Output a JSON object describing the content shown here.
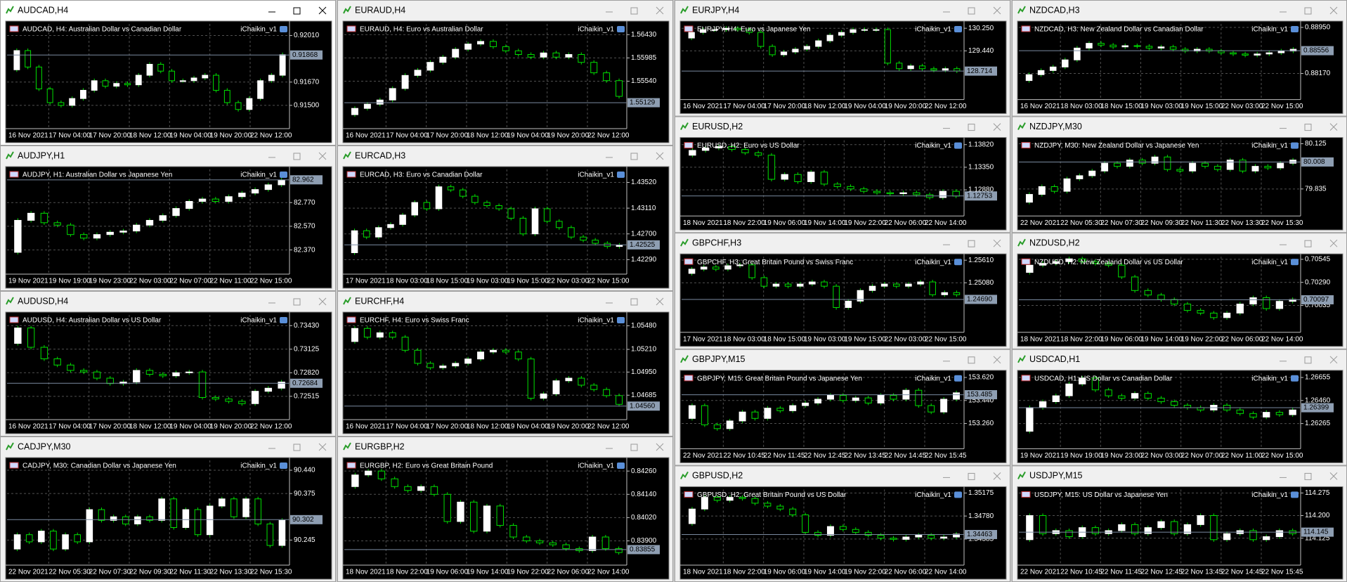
{
  "windows": [
    {
      "title": "AUDCAD,H4",
      "active": true,
      "description": "AUDCAD, H4:  Australian Dollar vs Canadian Dollar",
      "indicator": "iChaikin_v1",
      "ylim": [
        0.9133,
        0.92095
      ],
      "yticks": [
        {
          "value": 0.9201,
          "label": "0.92010"
        },
        {
          "value": 0.9167,
          "label": "0.91670"
        },
        {
          "value": 0.915,
          "label": "0.91500"
        }
      ],
      "price": 0.91868,
      "xlabels": [
        "16 Nov 2021",
        "17 Nov 04:00",
        "17 Nov 20:00",
        "18 Nov 12:00",
        "19 Nov 04:00",
        "19 Nov 20:00",
        "22 Nov 12:00"
      ],
      "open": 0.9176,
      "closes": [
        0.919,
        0.9178,
        0.9162,
        0.9152,
        0.915,
        0.9155,
        0.9161,
        0.9168,
        0.9164,
        0.9166,
        0.9165,
        0.9172,
        0.918,
        0.9175,
        0.9168,
        0.9168,
        0.917,
        0.9172,
        0.9161,
        0.9152,
        0.9147,
        0.9155,
        0.9168,
        0.9172,
        0.9187
      ]
    },
    {
      "title": "AUDJPY,H1",
      "description": "AUDJPY, H1:  Australian Dollar vs Japanese Yen",
      "indicator": "iChaikin_v1",
      "ylim": [
        82.166,
        83.05
      ],
      "yticks": [
        {
          "value": 82.77,
          "label": "82.770"
        },
        {
          "value": 82.57,
          "label": "82.570"
        },
        {
          "value": 82.37,
          "label": "82.370"
        }
      ],
      "price": 82.962,
      "xlabels": [
        "19 Nov 2021",
        "19 Nov 19:00",
        "19 Nov 23:00",
        "22 Nov 03:00",
        "22 Nov 07:00",
        "22 Nov 11:00",
        "22 Nov 15:00"
      ],
      "open": 82.35,
      "closes": [
        82.62,
        82.68,
        82.6,
        82.58,
        82.5,
        82.47,
        82.5,
        82.52,
        82.53,
        82.58,
        82.62,
        82.66,
        82.72,
        82.78,
        82.8,
        82.78,
        82.82,
        82.85,
        82.88,
        82.92,
        82.96
      ]
    },
    {
      "title": "AUDUSD,H4",
      "description": "AUDUSD, H4:  Australian Dollar vs US Dollar",
      "indicator": "iChaikin_v1",
      "ylim": [
        0.72213,
        0.73569
      ],
      "yticks": [
        {
          "value": 0.7343,
          "label": "0.73430"
        },
        0.73125,
        {
          "value": 0.7282,
          "label": "0.72820"
        },
        0.72515
      ],
      "price": 0.72684,
      "xlabels": [
        "16 Nov 2021",
        "17 Nov 04:00",
        "17 Nov 20:00",
        "18 Nov 12:00",
        "19 Nov 04:00",
        "19 Nov 20:00",
        "22 Nov 12:00"
      ],
      "open": 0.732,
      "closes": [
        0.734,
        0.7315,
        0.73,
        0.7292,
        0.7285,
        0.7283,
        0.7275,
        0.7268,
        0.727,
        0.7285,
        0.728,
        0.7278,
        0.7282,
        0.7283,
        0.725,
        0.7248,
        0.7245,
        0.7242,
        0.7258,
        0.7262,
        0.727
      ]
    },
    {
      "title": "CADJPY,M30",
      "description": "CADJPY, M30:  Canadian Dollar vs Japanese Yen",
      "indicator": "iChaikin_v1",
      "ylim": [
        90.175,
        90.4675
      ],
      "yticks": [
        {
          "value": 90.44,
          "label": "90.440"
        },
        90.375,
        90.245
      ],
      "price": 90.302,
      "xlabels": [
        "22 Nov 2021",
        "22 Nov 05:30",
        "22 Nov 07:30",
        "22 Nov 09:30",
        "22 Nov 11:30",
        "22 Nov 13:30",
        "22 Nov 15:30"
      ],
      "open": 90.22,
      "closes": [
        90.26,
        90.24,
        90.27,
        90.22,
        90.26,
        90.24,
        90.33,
        90.3,
        90.31,
        90.29,
        90.31,
        90.3,
        90.36,
        90.28,
        90.33,
        90.26,
        90.34,
        90.36,
        90.31,
        90.36,
        90.29,
        90.23,
        90.3
      ]
    },
    {
      "title": "EURAUD,H4",
      "description": "EURAUD, H4:  Euro vs Australian Dollar",
      "indicator": "iChaikin_v1",
      "ylim": [
        1.54633,
        1.56635
      ],
      "yticks": [
        {
          "value": 1.5643,
          "label": "1.56430"
        },
        1.55985,
        {
          "value": 1.5554,
          "label": "1.55540"
        }
      ],
      "price": 1.55129,
      "xlabels": [
        "16 Nov 2021",
        "17 Nov 04:00",
        "17 Nov 20:00",
        "18 Nov 12:00",
        "19 Nov 04:00",
        "19 Nov 20:00",
        "22 Nov 12:00"
      ],
      "open": 1.549,
      "closes": [
        1.5502,
        1.551,
        1.5518,
        1.554,
        1.5565,
        1.5575,
        1.559,
        1.56,
        1.5615,
        1.5625,
        1.563,
        1.562,
        1.5612,
        1.5605,
        1.56,
        1.5608,
        1.56,
        1.5605,
        1.559,
        1.557,
        1.5555,
        1.5525
      ]
    },
    {
      "title": "EURCAD,H3",
      "description": "EURCAD, H3:  Euro vs Canadian Dollar",
      "indicator": "iChaikin_v1",
      "ylim": [
        1.42059,
        1.43727
      ],
      "yticks": [
        {
          "value": 1.4352,
          "label": "1.43520"
        },
        {
          "value": 1.4311,
          "label": "1.43110"
        },
        {
          "value": 1.427,
          "label": "1.42700"
        },
        {
          "value": 1.4229,
          "label": "1.42290"
        }
      ],
      "price": 1.42525,
      "xlabels": [
        "17 Nov 2021",
        "18 Nov 03:00",
        "18 Nov 15:00",
        "19 Nov 03:00",
        "19 Nov 15:00",
        "22 Nov 03:00",
        "22 Nov 15:00"
      ],
      "open": 1.424,
      "closes": [
        1.4275,
        1.4265,
        1.428,
        1.4285,
        1.43,
        1.432,
        1.431,
        1.4345,
        1.434,
        1.433,
        1.432,
        1.4315,
        1.431,
        1.4295,
        1.427,
        1.431,
        1.429,
        1.428,
        1.4265,
        1.426,
        1.4255,
        1.425,
        1.4252
      ]
    },
    {
      "title": "EURCHF,H4",
      "description": "EURCHF, H4:  Euro vs Swiss Franc",
      "indicator": "iChaikin_v1",
      "ylim": [
        1.04405,
        1.05605
      ],
      "yticks": [
        {
          "value": 1.0548,
          "label": "1.05480"
        },
        {
          "value": 1.0521,
          "label": "1.05210"
        },
        {
          "value": 1.0495,
          "label": "1.04950"
        },
        1.04685
      ],
      "price": {
        "value": 1.0456,
        "label": "1.04560"
      },
      "xlabels": [
        "16 Nov 2021",
        "17 Nov 04:00",
        "17 Nov 20:00",
        "18 Nov 12:00",
        "19 Nov 04:00",
        "19 Nov 20:00",
        "22 Nov 12:00"
      ],
      "open": 1.053,
      "closes": [
        1.0545,
        1.0535,
        1.054,
        1.0535,
        1.052,
        1.0505,
        1.05,
        1.0502,
        1.0505,
        1.051,
        1.0518,
        1.052,
        1.0518,
        1.051,
        1.0465,
        1.047,
        1.0485,
        1.0488,
        1.048,
        1.0475,
        1.0468,
        1.0458
      ]
    },
    {
      "title": "EURGBP,H2",
      "description": "EURGBP, H2:  Euro vs Great Britain Pound",
      "indicator": "iChaikin_v1",
      "ylim": [
        0.83775,
        0.84315
      ],
      "yticks": [
        {
          "value": 0.8426,
          "label": "0.84260"
        },
        {
          "value": 0.8414,
          "label": "0.84140"
        },
        {
          "value": 0.8402,
          "label": "0.84020"
        },
        {
          "value": 0.839,
          "label": "0.83900"
        }
      ],
      "price": 0.83855,
      "xlabels": [
        "18 Nov 2021",
        "18 Nov 22:00",
        "19 Nov 06:00",
        "19 Nov 14:00",
        "19 Nov 22:00",
        "22 Nov 06:00",
        "22 Nov 14:00"
      ],
      "open": 0.8418,
      "closes": [
        0.8424,
        0.8426,
        0.8422,
        0.8418,
        0.8416,
        0.8418,
        0.8414,
        0.84,
        0.841,
        0.8395,
        0.8408,
        0.8398,
        0.8392,
        0.839,
        0.8389,
        0.8388,
        0.8386,
        0.8385,
        0.8392,
        0.8386,
        0.8384
      ]
    },
    {
      "title": "EURJPY,H4",
      "description": "EURJPY, H4:  Euro vs Japanese Yen",
      "indicator": "iChaikin_v1",
      "ylim": [
        127.695,
        130.406
      ],
      "yticks": [
        {
          "value": 130.25,
          "label": "130.250"
        },
        {
          "value": 129.44,
          "label": "129.440"
        }
      ],
      "price": 128.714,
      "xlabels": [
        "16 Nov 2021",
        "17 Nov 04:00",
        "17 Nov 20:00",
        "18 Nov 12:00",
        "19 Nov 04:00",
        "19 Nov 20:00",
        "22 Nov 12:00"
      ],
      "open": 129.9,
      "closes": [
        130.1,
        130.2,
        130.2,
        130.25,
        130.2,
        130.1,
        129.6,
        129.3,
        129.4,
        129.5,
        129.6,
        129.8,
        130.0,
        130.1,
        130.2,
        130.2,
        130.2,
        129.0,
        128.8,
        128.9,
        128.8,
        128.75,
        128.8,
        128.72
      ]
    },
    {
      "title": "EURUSD,H2",
      "description": "EURUSD, H2:  Euro vs US Dollar",
      "indicator": "iChaikin_v1",
      "ylim": [
        1.12338,
        1.1391
      ],
      "yticks": [
        {
          "value": 1.1382,
          "label": "1.13820"
        },
        {
          "value": 1.1335,
          "label": "1.13350"
        },
        {
          "value": 1.1288,
          "label": "1.12880"
        }
      ],
      "price": 1.12753,
      "xlabels": [
        "18 Nov 2021",
        "18 Nov 22:00",
        "19 Nov 06:00",
        "19 Nov 14:00",
        "19 Nov 22:00",
        "22 Nov 06:00",
        "22 Nov 14:00"
      ],
      "open": 1.136,
      "closes": [
        1.137,
        1.1375,
        1.1378,
        1.1372,
        1.1365,
        1.136,
        1.131,
        1.132,
        1.1305,
        1.1325,
        1.13,
        1.1295,
        1.129,
        1.1285,
        1.1282,
        1.128,
        1.1282,
        1.1278,
        1.1272,
        1.1285,
        1.1275
      ]
    },
    {
      "title": "GBPCHF,H3",
      "description": "GBPCHF, H3:  Great Britain Pound vs Swiss Franc",
      "indicator": "iChaikin_v1",
      "ylim": [
        1.23918,
        1.25692
      ],
      "yticks": [
        {
          "value": 1.2561,
          "label": "1.25610"
        },
        {
          "value": 1.2508,
          "label": "1.25080"
        }
      ],
      "price": {
        "value": 1.2469,
        "label": "1.24690"
      },
      "xlabels": [
        "17 Nov 2021",
        "18 Nov 03:00",
        "18 Nov 15:00",
        "19 Nov 03:00",
        "19 Nov 15:00",
        "22 Nov 03:00",
        "22 Nov 15:00"
      ],
      "open": 1.253,
      "closes": [
        1.254,
        1.2545,
        1.254,
        1.2548,
        1.255,
        1.252,
        1.25,
        1.2505,
        1.25,
        1.2505,
        1.251,
        1.25,
        1.245,
        1.2465,
        1.249,
        1.25,
        1.2505,
        1.25,
        1.2505,
        1.251,
        1.248,
        1.2485,
        1.248
      ]
    },
    {
      "title": "GBPJPY,M15",
      "description": "GBPJPY, M15:  Great Britain Pound vs Japanese Yen",
      "indicator": "iChaikin_v1",
      "ylim": [
        153.063,
        153.654
      ],
      "yticks": [
        {
          "value": 153.62,
          "label": "153.620"
        },
        {
          "value": 153.44,
          "label": "153.440"
        },
        {
          "value": 153.26,
          "label": "153.260"
        }
      ],
      "price": 153.485,
      "xlabels": [
        "22 Nov 2021",
        "22 Nov 10:45",
        "22 Nov 11:45",
        "22 Nov 12:45",
        "22 Nov 13:45",
        "22 Nov 14:45",
        "22 Nov 15:45"
      ],
      "open": 153.3,
      "closes": [
        153.4,
        153.25,
        153.22,
        153.28,
        153.35,
        153.3,
        153.38,
        153.36,
        153.4,
        153.42,
        153.45,
        153.48,
        153.44,
        153.46,
        153.42,
        153.48,
        153.45,
        153.52,
        153.4,
        153.35,
        153.45,
        153.5
      ]
    },
    {
      "title": "GBPUSD,H2",
      "description": "GBPUSD, H2:  Great Britain Pound vs US Dollar",
      "indicator": "iChaikin_v1",
      "ylim": [
        1.33938,
        1.35235
      ],
      "yticks": [
        1.35175,
        {
          "value": 1.3478,
          "label": "1.34780"
        },
        1.34385
      ],
      "price": 1.34463,
      "xlabels": [
        "18 Nov 2021",
        "18 Nov 22:00",
        "19 Nov 06:00",
        "19 Nov 14:00",
        "19 Nov 22:00",
        "22 Nov 06:00",
        "22 Nov 14:00"
      ],
      "open": 1.3465,
      "closes": [
        1.349,
        1.351,
        1.3505,
        1.351,
        1.3508,
        1.35,
        1.3495,
        1.349,
        1.348,
        1.345,
        1.3445,
        1.346,
        1.3455,
        1.345,
        1.3445,
        1.344,
        1.3438,
        1.3442,
        1.3445,
        1.344,
        1.3442,
        1.3447
      ]
    },
    {
      "title": "NZDCAD,H3",
      "description": "NZDCAD, H3:  New Zealand Dollar vs Canadian Dollar",
      "indicator": "iChaikin_v1",
      "ylim": [
        0.87729,
        0.89009
      ],
      "yticks": [
        {
          "value": 0.8895,
          "label": "0.88950"
        },
        {
          "value": 0.8817,
          "label": "0.88170"
        }
      ],
      "price": 0.88556,
      "xlabels": [
        "16 Nov 2021",
        "18 Nov 03:00",
        "18 Nov 15:00",
        "19 Nov 03:00",
        "19 Nov 15:00",
        "22 Nov 03:00",
        "22 Nov 15:00"
      ],
      "open": 0.8805,
      "closes": [
        0.8815,
        0.8822,
        0.8828,
        0.884,
        0.886,
        0.8868,
        0.8865,
        0.8862,
        0.8864,
        0.8863,
        0.886,
        0.8862,
        0.8858,
        0.8855,
        0.8858,
        0.8855,
        0.8852,
        0.885,
        0.8848,
        0.885,
        0.8852,
        0.8855,
        0.8858
      ]
    },
    {
      "title": "NZDJPY,M30",
      "description": "NZDJPY, M30:  New Zealand Dollar vs Japanese Yen",
      "indicator": "iChaikin_v1",
      "ylim": [
        79.662,
        80.147
      ],
      "yticks": [
        80.125,
        79.835
      ],
      "price": 80.008,
      "xlabels": [
        "22 Nov 2021",
        "22 Nov 05:30",
        "22 Nov 07:30",
        "22 Nov 09:30",
        "22 Nov 11:30",
        "22 Nov 13:30",
        "22 Nov 15:30"
      ],
      "open": 79.75,
      "closes": [
        79.8,
        79.85,
        79.82,
        79.9,
        79.92,
        79.95,
        80.0,
        79.98,
        80.02,
        80.0,
        80.04,
        79.96,
        79.95,
        80.0,
        79.98,
        79.96,
        80.02,
        79.95,
        79.98,
        79.97,
        80.0,
        80.02
      ]
    },
    {
      "title": "NZDUSD,H2",
      "description": "NZDUSD, H2:  New Zealand Dollar vs US Dollar",
      "indicator": "iChaikin_v1",
      "ylim": [
        0.69737,
        0.70574
      ],
      "yticks": [
        0.70545,
        {
          "value": 0.7029,
          "label": "0.70290"
        },
        0.70035
      ],
      "price": 0.70097,
      "xlabels": [
        "18 Nov 2021",
        "18 Nov 22:00",
        "19 Nov 06:00",
        "19 Nov 14:00",
        "19 Nov 22:00",
        "22 Nov 06:00",
        "22 Nov 14:00"
      ],
      "open": 0.704,
      "closes": [
        0.7048,
        0.705,
        0.7052,
        0.7055,
        0.7052,
        0.705,
        0.7048,
        0.7035,
        0.702,
        0.7015,
        0.701,
        0.7005,
        0.6998,
        0.6995,
        0.699,
        0.6995,
        0.7005,
        0.7012,
        0.7,
        0.7008,
        0.701
      ]
    },
    {
      "title": "USDCAD,H1",
      "description": "USDCAD, H1:  US Dollar vs Canadian Dollar",
      "indicator": "iChaikin_v1",
      "ylim": [
        1.26052,
        1.26692
      ],
      "yticks": [
        1.26655,
        {
          "value": 1.2646,
          "label": "1.26460"
        },
        1.26265
      ],
      "price": 1.26399,
      "xlabels": [
        "19 Nov 2021",
        "19 Nov 19:00",
        "19 Nov 23:00",
        "22 Nov 03:00",
        "22 Nov 07:00",
        "22 Nov 11:00",
        "22 Nov 15:00"
      ],
      "open": 1.262,
      "closes": [
        1.264,
        1.2645,
        1.265,
        1.266,
        1.2665,
        1.2655,
        1.265,
        1.2648,
        1.2652,
        1.2648,
        1.2645,
        1.2642,
        1.264,
        1.2638,
        1.2642,
        1.2638,
        1.2635,
        1.2632,
        1.2636,
        1.2634,
        1.2638
      ]
    },
    {
      "title": "USDJPY,M15",
      "description": "USDJPY, M15:  US Dollar vs Japanese Yen",
      "indicator": "iChaikin_v1",
      "ylim": [
        114.0356,
        114.2865
      ],
      "yticks": [
        114.275,
        {
          "value": 114.2,
          "label": "114.200"
        },
        114.125
      ],
      "price": 114.145,
      "xlabels": [
        "22 Nov 2021",
        "22 Nov 10:45",
        "22 Nov 11:45",
        "22 Nov 12:45",
        "22 Nov 13:45",
        "22 Nov 14:45",
        "22 Nov 15:45"
      ],
      "open": 114.12,
      "closes": [
        114.2,
        114.14,
        114.15,
        114.13,
        114.16,
        114.14,
        114.15,
        114.17,
        114.14,
        114.16,
        114.18,
        114.14,
        114.17,
        114.2,
        114.12,
        114.14,
        114.15,
        114.12,
        114.13,
        114.15,
        114.14
      ]
    }
  ]
}
